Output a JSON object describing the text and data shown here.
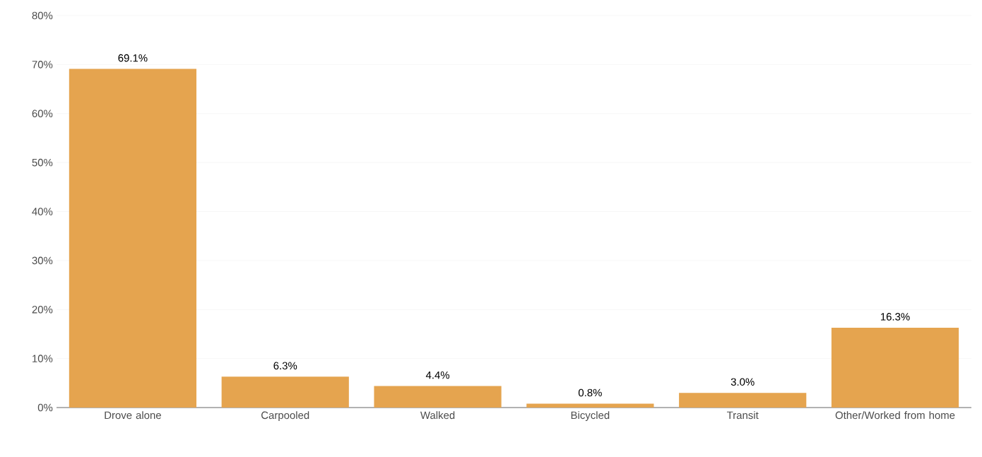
{
  "chart_data": {
    "type": "bar",
    "categories": [
      "Drove alone",
      "Carpooled",
      "Walked",
      "Bicycled",
      "Transit",
      "Other/Worked from home"
    ],
    "values": [
      69.1,
      6.3,
      4.4,
      0.8,
      3.0,
      16.3
    ],
    "value_labels": [
      "69.1%",
      "6.3%",
      "4.4%",
      "0.8%",
      "3.0%",
      "16.3%"
    ],
    "color": "#e5a44f",
    "ylim": [
      0,
      80
    ],
    "yticks": [
      {
        "value": 0,
        "label": "0%"
      },
      {
        "value": 10,
        "label": "10%"
      },
      {
        "value": 20,
        "label": "20%"
      },
      {
        "value": 30,
        "label": "30%"
      },
      {
        "value": 40,
        "label": "40%"
      },
      {
        "value": 50,
        "label": "50%"
      },
      {
        "value": 60,
        "label": "60%"
      },
      {
        "value": 70,
        "label": "70%"
      },
      {
        "value": 80,
        "label": "80%"
      }
    ],
    "grid": "y"
  }
}
